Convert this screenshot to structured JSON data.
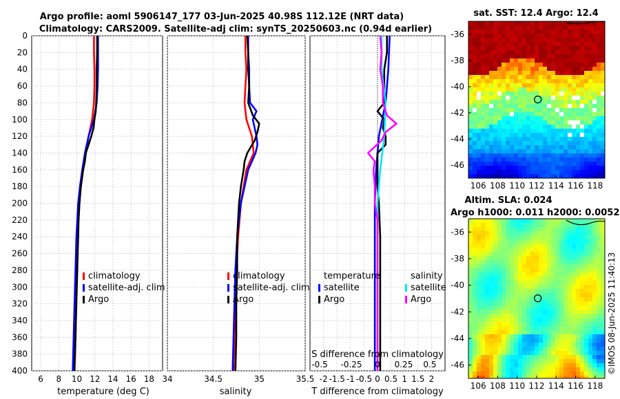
{
  "header": {
    "title_line1": "Argo profile: aoml 5906147_177 03-Jun-2025 40.98S 112.12E (NRT data)",
    "title_line2": "Climatology: CARS2009. Satellite-adj clim: synTS_20250603.nc (0.94d earlier)"
  },
  "footer": {
    "credit": "©IMOS 08-Jun-2025 11:40:13"
  },
  "colors": {
    "climatology": "#ff0000",
    "satellite": "#0000ff",
    "argo": "#000000",
    "salinity_sat": "#00e5ff",
    "salinity_argo": "#ff00ff",
    "grid": "#c8c8d8"
  },
  "chart_data": [
    {
      "id": "temperature",
      "type": "line",
      "xlabel": "temperature (deg C)",
      "ylabel": "",
      "xlim": [
        5,
        19.5
      ],
      "ylim": [
        400,
        0
      ],
      "xticks": [
        6,
        8,
        10,
        12,
        14,
        16,
        18
      ],
      "yticks": [
        0,
        20,
        40,
        60,
        80,
        100,
        120,
        140,
        160,
        180,
        200,
        220,
        240,
        260,
        280,
        300,
        320,
        340,
        360,
        380,
        400
      ],
      "legend": [
        "climatology",
        "satellite-adj. clim",
        "Argo"
      ],
      "series": [
        {
          "name": "climatology",
          "color": "#ff0000",
          "depth": [
            0,
            20,
            40,
            60,
            80,
            100,
            110,
            120,
            140,
            160,
            180,
            200,
            240,
            280,
            320,
            360,
            400
          ],
          "values": [
            11.9,
            11.9,
            11.95,
            11.95,
            11.9,
            11.7,
            11.5,
            11.3,
            11.0,
            10.7,
            10.45,
            10.25,
            10.05,
            9.95,
            9.85,
            9.75,
            9.65
          ]
        },
        {
          "name": "satellite-adj. clim",
          "color": "#0000ff",
          "depth": [
            0,
            20,
            40,
            60,
            80,
            100,
            110,
            120,
            140,
            160,
            180,
            200,
            240,
            280,
            320,
            360,
            400
          ],
          "values": [
            12.35,
            12.35,
            12.35,
            12.3,
            12.2,
            11.9,
            11.6,
            11.3,
            10.9,
            10.6,
            10.35,
            10.15,
            9.95,
            9.85,
            9.75,
            9.65,
            9.55
          ]
        },
        {
          "name": "Argo",
          "color": "#000000",
          "depth": [
            0,
            20,
            40,
            60,
            80,
            90,
            100,
            110,
            120,
            130,
            140,
            150,
            160,
            180,
            200,
            220,
            240,
            260,
            280,
            300,
            320,
            340,
            360,
            380,
            400
          ],
          "values": [
            12.25,
            12.25,
            12.2,
            12.2,
            12.15,
            12.1,
            11.95,
            11.85,
            11.6,
            11.3,
            11.0,
            10.9,
            10.7,
            10.45,
            10.3,
            10.2,
            10.15,
            10.1,
            10.05,
            10.0,
            9.95,
            9.9,
            9.85,
            9.8,
            9.75
          ]
        }
      ]
    },
    {
      "id": "salinity",
      "type": "line",
      "xlabel": "salinity",
      "xlim": [
        34,
        35.5
      ],
      "ylim": [
        400,
        0
      ],
      "xticks": [
        34,
        34.5,
        35,
        35.5
      ],
      "xticklabels": [
        "34",
        "34.5",
        "35",
        "35.5"
      ],
      "legend": [
        "climatology",
        "satellite-adj. clim",
        "Argo"
      ],
      "series": [
        {
          "name": "climatology",
          "color": "#ff0000",
          "depth": [
            0,
            20,
            40,
            60,
            80,
            100,
            120,
            140,
            160,
            200,
            240,
            280,
            320,
            360,
            400
          ],
          "values": [
            34.85,
            34.85,
            34.86,
            34.85,
            34.84,
            34.86,
            34.92,
            34.94,
            34.86,
            34.8,
            34.77,
            34.75,
            34.74,
            34.73,
            34.72
          ]
        },
        {
          "name": "satellite-adj. clim",
          "color": "#0000ff",
          "depth": [
            0,
            20,
            40,
            60,
            80,
            90,
            100,
            120,
            130,
            140,
            160,
            200,
            240,
            280,
            320,
            360,
            400
          ],
          "values": [
            34.88,
            34.88,
            34.89,
            34.89,
            34.9,
            34.97,
            34.93,
            34.97,
            34.98,
            34.96,
            34.88,
            34.8,
            34.76,
            34.74,
            34.73,
            34.72,
            34.71
          ]
        },
        {
          "name": "Argo",
          "color": "#000000",
          "depth": [
            0,
            20,
            40,
            60,
            80,
            95,
            105,
            115,
            125,
            140,
            150,
            160,
            180,
            200,
            240,
            280,
            320,
            360,
            400
          ],
          "values": [
            34.87,
            34.88,
            34.88,
            34.89,
            34.88,
            34.93,
            35.0,
            34.98,
            34.95,
            34.87,
            34.84,
            34.83,
            34.8,
            34.78,
            34.76,
            34.76,
            34.75,
            34.75,
            34.74
          ]
        }
      ]
    },
    {
      "id": "difference",
      "type": "line",
      "xlabel": "T difference from climatology",
      "xlabel_top": "S difference from climatology",
      "xlim": [
        -2.5,
        2.5
      ],
      "ylim": [
        400,
        0
      ],
      "xticks": [
        -2,
        -1.5,
        -1,
        -0.5,
        0,
        0.5,
        1,
        1.5,
        2
      ],
      "xticklabels": [
        "-2",
        "-1.5",
        "-1",
        "-0.5",
        "0",
        "0.5",
        "1",
        "1.5",
        "2"
      ],
      "top_xticklabels": [
        "-0.5",
        "-0.25",
        "0",
        "0.25",
        "0.5"
      ],
      "legend_left_title": "temperature",
      "legend_left": [
        "satellite",
        "Argo"
      ],
      "legend_right_title": "salinity",
      "legend_right": [
        "satellite",
        "Argo"
      ],
      "series": [
        {
          "name": "T satellite",
          "color": "#0000ff",
          "depth": [
            0,
            40,
            80,
            120,
            160,
            200,
            240,
            280,
            320,
            360,
            400
          ],
          "values": [
            0.45,
            0.4,
            0.3,
            0.05,
            -0.05,
            -0.1,
            -0.1,
            -0.1,
            -0.1,
            -0.1,
            -0.1
          ]
        },
        {
          "name": "T Argo",
          "color": "#000000",
          "depth": [
            0,
            20,
            40,
            60,
            80,
            90,
            100,
            110,
            120,
            130,
            140,
            160,
            180,
            200,
            240,
            280,
            320,
            360,
            400
          ],
          "values": [
            0.35,
            0.35,
            0.25,
            0.25,
            0.25,
            0.0,
            0.25,
            0.2,
            0.3,
            0.3,
            0.0,
            0.0,
            0.0,
            0.05,
            0.1,
            0.1,
            0.1,
            0.1,
            0.1
          ]
        },
        {
          "name": "S satellite",
          "color": "#00e5ff",
          "depth": [
            0,
            40,
            80,
            120,
            160,
            200,
            240,
            280,
            320,
            360,
            400
          ],
          "values": [
            0.03,
            0.03,
            0.06,
            0.05,
            0.02,
            0.0,
            0.0,
            0.0,
            0.0,
            0.0,
            0.0
          ]
        },
        {
          "name": "S Argo",
          "color": "#ff00ff",
          "depth": [
            0,
            20,
            40,
            60,
            80,
            95,
            105,
            115,
            125,
            140,
            150,
            160,
            180,
            200,
            220,
            240,
            280,
            320,
            360,
            400
          ],
          "values": [
            0.02,
            0.03,
            0.02,
            0.04,
            0.04,
            0.07,
            0.14,
            0.06,
            0.03,
            -0.07,
            -0.02,
            -0.03,
            -0.02,
            -0.02,
            0.0,
            0.0,
            0.0,
            0.0,
            0.0,
            0.0
          ]
        }
      ]
    },
    {
      "id": "sst_map",
      "type": "heatmap",
      "title": "sat. SST: 12.4 Argo: 12.4",
      "xlim": [
        105,
        119
      ],
      "ylim": [
        -47,
        -35
      ],
      "xticks": [
        106,
        108,
        110,
        112,
        114,
        116,
        118
      ],
      "yticks": [
        -36,
        -38,
        -40,
        -42,
        -44,
        -46
      ],
      "marker": {
        "lon": 112.12,
        "lat": -40.98
      }
    },
    {
      "id": "sla_map",
      "type": "heatmap",
      "title_line1": "Altim. SLA: 0.024",
      "title_line2": "Argo h1000: 0.011 h2000: 0.0052",
      "xlim": [
        105,
        119
      ],
      "ylim": [
        -47,
        -35
      ],
      "xticks": [
        106,
        108,
        110,
        112,
        114,
        116,
        118
      ],
      "yticks": [
        -36,
        -38,
        -40,
        -42,
        -44,
        -46
      ],
      "marker": {
        "lon": 112.12,
        "lat": -40.98
      }
    }
  ]
}
